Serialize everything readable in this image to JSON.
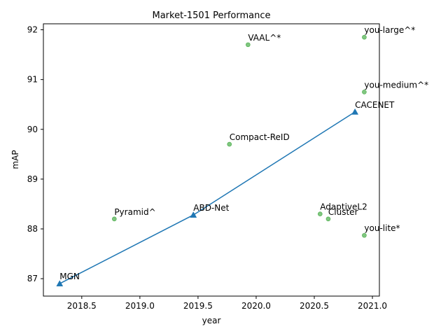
{
  "chart_data": {
    "type": "scatter",
    "title": "Market-1501 Performance",
    "xlabel": "year",
    "ylabel": "mAP",
    "xlim": [
      2018.17,
      2021.06
    ],
    "ylim": [
      86.65,
      92.12
    ],
    "xticks": [
      2018.5,
      2019.0,
      2019.5,
      2020.0,
      2020.5,
      2021.0
    ],
    "xtick_labels": [
      "2018.5",
      "2019.0",
      "2019.5",
      "2020.0",
      "2020.5",
      "2021.0"
    ],
    "yticks": [
      87,
      88,
      89,
      90,
      91,
      92
    ],
    "ytick_labels": [
      "87",
      "88",
      "89",
      "90",
      "91",
      "92"
    ],
    "grid": false,
    "series": [
      {
        "role": "sota-line",
        "marker": "triangle",
        "color": "#1f77b4",
        "points": [
          {
            "label": "MGN",
            "x": 2018.31,
            "y": 86.9
          },
          {
            "label": "ABD-Net",
            "x": 2019.46,
            "y": 88.28
          },
          {
            "label": "CACENET",
            "x": 2020.85,
            "y": 90.35
          }
        ]
      },
      {
        "role": "others",
        "marker": "circle",
        "color": "#2ca02c",
        "points": [
          {
            "label": "Pyramid^",
            "x": 2018.78,
            "y": 88.2
          },
          {
            "label": "Compact-ReID",
            "x": 2019.77,
            "y": 89.7
          },
          {
            "label": "VAAL^*",
            "x": 2019.93,
            "y": 91.7
          },
          {
            "label": "AdaptiveL2",
            "x": 2020.55,
            "y": 88.3
          },
          {
            "label": "Cluster",
            "x": 2020.62,
            "y": 88.2
          },
          {
            "label": "you-large^*",
            "x": 2020.93,
            "y": 91.85
          },
          {
            "label": "you-medium^*",
            "x": 2020.93,
            "y": 90.75
          },
          {
            "label": "you-lite*",
            "x": 2020.93,
            "y": 87.87
          }
        ]
      }
    ]
  }
}
